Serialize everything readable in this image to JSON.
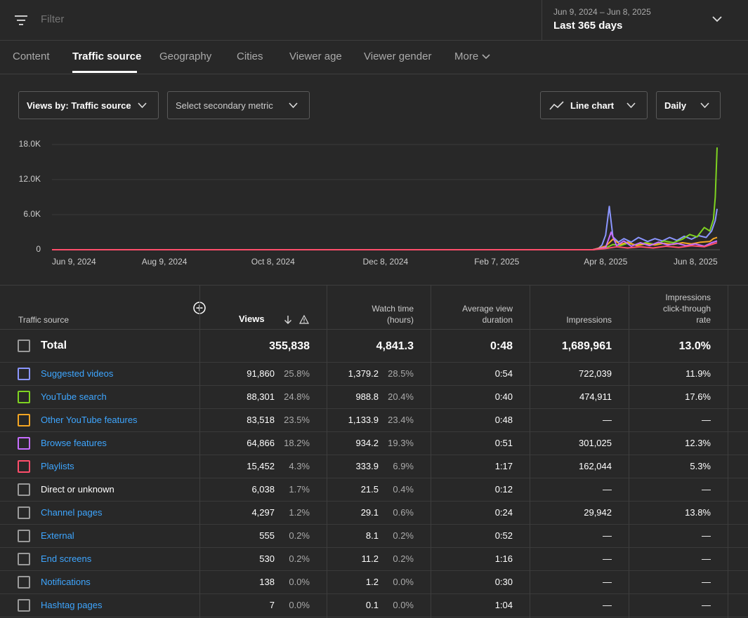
{
  "filter": {
    "placeholder": "Filter"
  },
  "date": {
    "range": "Jun 9, 2024 – Jun 8, 2025",
    "label": "Last 365 days"
  },
  "tabs": [
    "Content",
    "Traffic source",
    "Geography",
    "Cities",
    "Viewer age",
    "Viewer gender",
    "More"
  ],
  "active_tab": "Traffic source",
  "controls": {
    "primary": "Views by: Traffic source",
    "secondary": "Select secondary metric",
    "chart_type": "Line chart",
    "interval": "Daily"
  },
  "chart_data": {
    "type": "line",
    "x_start": "Jun 9, 2024",
    "x_end": "Jun 8, 2025",
    "xticks": [
      "Jun 9, 2024",
      "Aug 9, 2024",
      "Oct 8, 2024",
      "Dec 8, 2024",
      "Feb 7, 2025",
      "Apr 8, 2025",
      "Jun 8, 2025"
    ],
    "yticks": [
      "0",
      "6.0K",
      "12.0K",
      "18.0K"
    ],
    "ylim": [
      0,
      18000
    ],
    "grid": true,
    "series": [
      {
        "name": "Suggested videos",
        "color": "#8b96ff",
        "points": [
          [
            "Apr 1, 2025",
            0
          ],
          [
            "Apr 4, 2025",
            200
          ],
          [
            "Apr 6, 2025",
            800
          ],
          [
            "Apr 8, 2025",
            2500
          ],
          [
            "Apr 10, 2025",
            7400
          ],
          [
            "Apr 12, 2025",
            2200
          ],
          [
            "Apr 15, 2025",
            1300
          ],
          [
            "Apr 18, 2025",
            1900
          ],
          [
            "Apr 22, 2025",
            1300
          ],
          [
            "Apr 26, 2025",
            2100
          ],
          [
            "May 1, 2025",
            1400
          ],
          [
            "May 5, 2025",
            1900
          ],
          [
            "May 9, 2025",
            1500
          ],
          [
            "May 13, 2025",
            2100
          ],
          [
            "May 17, 2025",
            1600
          ],
          [
            "May 21, 2025",
            2300
          ],
          [
            "May 25, 2025",
            1800
          ],
          [
            "May 29, 2025",
            2400
          ],
          [
            "Jun 2, 2025",
            2100
          ],
          [
            "Jun 5, 2025",
            3200
          ],
          [
            "Jun 7, 2025",
            5000
          ],
          [
            "Jun 8, 2025",
            7000
          ]
        ]
      },
      {
        "name": "YouTube search",
        "color": "#7ed321",
        "points": [
          [
            "Apr 1, 2025",
            0
          ],
          [
            "Apr 8, 2025",
            300
          ],
          [
            "Apr 12, 2025",
            900
          ],
          [
            "Apr 16, 2025",
            700
          ],
          [
            "Apr 20, 2025",
            1100
          ],
          [
            "Apr 25, 2025",
            800
          ],
          [
            "Apr 30, 2025",
            1200
          ],
          [
            "May 5, 2025",
            900
          ],
          [
            "May 10, 2025",
            1500
          ],
          [
            "May 15, 2025",
            1200
          ],
          [
            "May 20, 2025",
            1800
          ],
          [
            "May 24, 2025",
            2600
          ],
          [
            "May 28, 2025",
            2200
          ],
          [
            "Jun 1, 2025",
            3800
          ],
          [
            "Jun 4, 2025",
            3200
          ],
          [
            "Jun 6, 2025",
            5200
          ],
          [
            "Jun 7, 2025",
            9000
          ],
          [
            "Jun 8, 2025",
            17500
          ]
        ]
      },
      {
        "name": "Other YouTube features",
        "color": "#f5a623",
        "points": [
          [
            "Apr 1, 2025",
            0
          ],
          [
            "Apr 8, 2025",
            600
          ],
          [
            "Apr 12, 2025",
            1800
          ],
          [
            "Apr 16, 2025",
            900
          ],
          [
            "Apr 20, 2025",
            1300
          ],
          [
            "Apr 25, 2025",
            700
          ],
          [
            "Apr 30, 2025",
            1000
          ],
          [
            "May 5, 2025",
            800
          ],
          [
            "May 10, 2025",
            1100
          ],
          [
            "May 15, 2025",
            900
          ],
          [
            "May 20, 2025",
            1200
          ],
          [
            "May 25, 2025",
            1000
          ],
          [
            "May 30, 2025",
            1300
          ],
          [
            "Jun 4, 2025",
            1400
          ],
          [
            "Jun 6, 2025",
            1900
          ],
          [
            "Jun 8, 2025",
            2100
          ]
        ]
      },
      {
        "name": "Browse features",
        "color": "#c66dff",
        "points": [
          [
            "Apr 1, 2025",
            0
          ],
          [
            "Apr 8, 2025",
            400
          ],
          [
            "Apr 11, 2025",
            3000
          ],
          [
            "Apr 14, 2025",
            700
          ],
          [
            "Apr 18, 2025",
            1500
          ],
          [
            "Apr 22, 2025",
            600
          ],
          [
            "Apr 27, 2025",
            1200
          ],
          [
            "May 2, 2025",
            700
          ],
          [
            "May 7, 2025",
            1300
          ],
          [
            "May 12, 2025",
            800
          ],
          [
            "May 17, 2025",
            1100
          ],
          [
            "May 22, 2025",
            700
          ],
          [
            "May 27, 2025",
            1000
          ],
          [
            "Jun 1, 2025",
            600
          ],
          [
            "Jun 5, 2025",
            1200
          ],
          [
            "Jun 8, 2025",
            1500
          ]
        ]
      },
      {
        "name": "Playlists",
        "color": "#ff4e6b",
        "points": [
          [
            "Apr 1, 2025",
            0
          ],
          [
            "Apr 8, 2025",
            200
          ],
          [
            "Apr 14, 2025",
            500
          ],
          [
            "Apr 20, 2025",
            300
          ],
          [
            "Apr 27, 2025",
            500
          ],
          [
            "May 4, 2025",
            300
          ],
          [
            "May 11, 2025",
            600
          ],
          [
            "May 18, 2025",
            400
          ],
          [
            "May 25, 2025",
            700
          ],
          [
            "Jun 1, 2025",
            500
          ],
          [
            "Jun 5, 2025",
            900
          ],
          [
            "Jun 8, 2025",
            1200
          ]
        ]
      }
    ]
  },
  "table": {
    "headers": {
      "source": "Traffic source",
      "views": "Views",
      "watch_line1": "Watch time",
      "watch_line2": "(hours)",
      "avd_line1": "Average view",
      "avd_line2": "duration",
      "impressions": "Impressions",
      "ctr_line1": "Impressions",
      "ctr_line2": "click-through",
      "ctr_line3": "rate"
    },
    "total": {
      "label": "Total",
      "views": "355,838",
      "watch": "4,841.3",
      "avd": "0:48",
      "impressions": "1,689,961",
      "ctr": "13.0%"
    },
    "rows": [
      {
        "name": "Suggested videos",
        "color": "#8b96ff",
        "views": "91,860",
        "views_pct": "25.8%",
        "watch": "1,379.2",
        "watch_pct": "28.5%",
        "avd": "0:54",
        "impressions": "722,039",
        "ctr": "11.9%"
      },
      {
        "name": "YouTube search",
        "color": "#7ed321",
        "views": "88,301",
        "views_pct": "24.8%",
        "watch": "988.8",
        "watch_pct": "20.4%",
        "avd": "0:40",
        "impressions": "474,911",
        "ctr": "17.6%"
      },
      {
        "name": "Other YouTube features",
        "color": "#f5a623",
        "views": "83,518",
        "views_pct": "23.5%",
        "watch": "1,133.9",
        "watch_pct": "23.4%",
        "avd": "0:48",
        "impressions": "—",
        "ctr": "—"
      },
      {
        "name": "Browse features",
        "color": "#c66dff",
        "views": "64,866",
        "views_pct": "18.2%",
        "watch": "934.2",
        "watch_pct": "19.3%",
        "avd": "0:51",
        "impressions": "301,025",
        "ctr": "12.3%"
      },
      {
        "name": "Playlists",
        "color": "#ff4e6b",
        "views": "15,452",
        "views_pct": "4.3%",
        "watch": "333.9",
        "watch_pct": "6.9%",
        "avd": "1:17",
        "impressions": "162,044",
        "ctr": "5.3%"
      },
      {
        "name": "Direct or unknown",
        "color": "",
        "views": "6,038",
        "views_pct": "1.7%",
        "watch": "21.5",
        "watch_pct": "0.4%",
        "avd": "0:12",
        "impressions": "—",
        "ctr": "—"
      },
      {
        "name": "Channel pages",
        "color": "",
        "views": "4,297",
        "views_pct": "1.2%",
        "watch": "29.1",
        "watch_pct": "0.6%",
        "avd": "0:24",
        "impressions": "29,942",
        "ctr": "13.8%"
      },
      {
        "name": "External",
        "color": "",
        "views": "555",
        "views_pct": "0.2%",
        "watch": "8.1",
        "watch_pct": "0.2%",
        "avd": "0:52",
        "impressions": "—",
        "ctr": "—"
      },
      {
        "name": "End screens",
        "color": "",
        "views": "530",
        "views_pct": "0.2%",
        "watch": "11.2",
        "watch_pct": "0.2%",
        "avd": "1:16",
        "impressions": "—",
        "ctr": "—"
      },
      {
        "name": "Notifications",
        "color": "",
        "views": "138",
        "views_pct": "0.0%",
        "watch": "1.2",
        "watch_pct": "0.0%",
        "avd": "0:30",
        "impressions": "—",
        "ctr": "—"
      },
      {
        "name": "Hashtag pages",
        "color": "",
        "views": "7",
        "views_pct": "0.0%",
        "watch": "0.1",
        "watch_pct": "0.0%",
        "avd": "1:04",
        "impressions": "—",
        "ctr": "—"
      }
    ]
  }
}
